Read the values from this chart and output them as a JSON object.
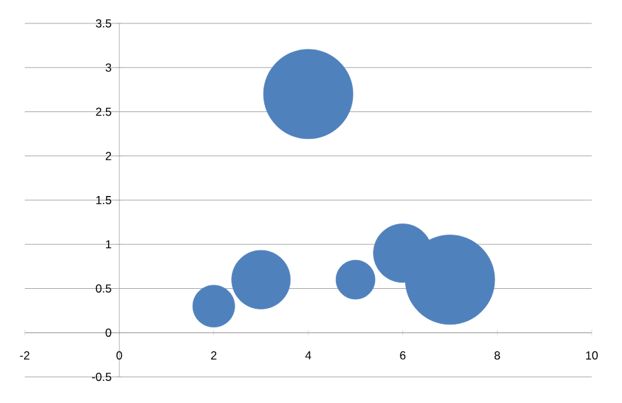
{
  "chart_data": {
    "type": "bubble",
    "color": "#4f81bd",
    "x": [
      2,
      3,
      4,
      5,
      6,
      7
    ],
    "values": [
      0.3,
      0.6,
      2.7,
      0.6,
      0.9,
      0.6
    ],
    "sizes": [
      0.22,
      0.43,
      1,
      0.19,
      0.43,
      1
    ],
    "xlim": [
      -2,
      10
    ],
    "ylim": [
      -0.5,
      3.5
    ],
    "xticks": [
      -2,
      0,
      2,
      4,
      6,
      8,
      10
    ],
    "yticks": [
      -0.5,
      0,
      0.5,
      1,
      1.5,
      2,
      2.5,
      3,
      3.5
    ],
    "grid": "y"
  }
}
